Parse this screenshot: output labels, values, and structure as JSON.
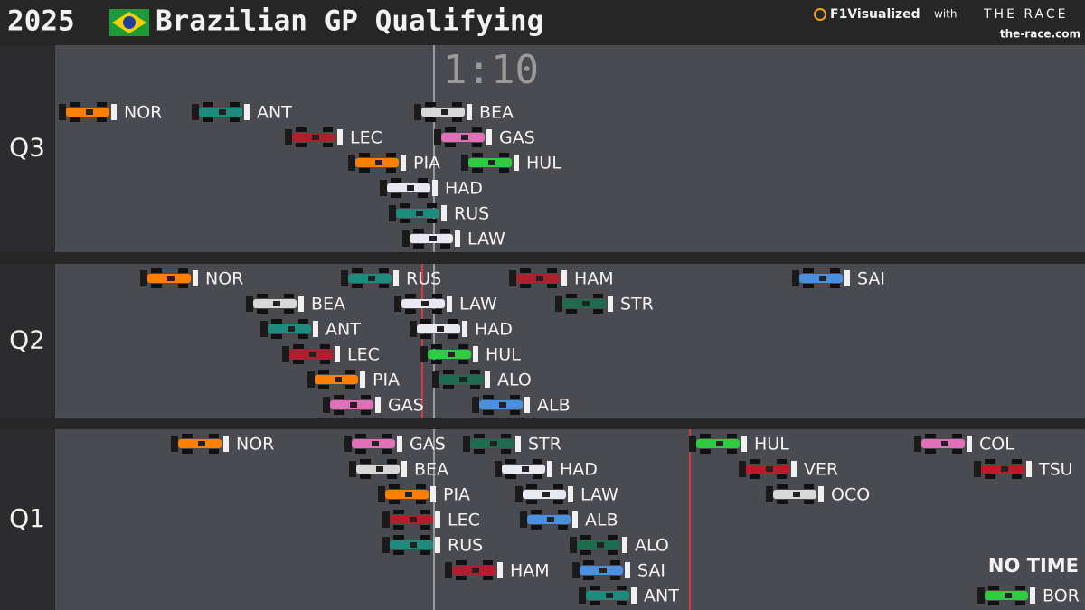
{
  "header": {
    "year": "2025",
    "title": "Brazilian GP Qualifying",
    "brand": "F1Visualized",
    "with": "with",
    "partner": "THE RACE",
    "site": "the-race.com"
  },
  "time_marker": "1:10",
  "no_time_label": "NO TIME",
  "sessions": [
    {
      "label": "Q3",
      "drivers": [
        {
          "code": "NOR",
          "color": "#ff8000"
        },
        {
          "code": "ANT",
          "color": "#1d8c7c"
        },
        {
          "code": "BEA",
          "color": "#d8d8d8"
        },
        {
          "code": "LEC",
          "color": "#b0202c"
        },
        {
          "code": "GAS",
          "color": "#e070b8"
        },
        {
          "code": "PIA",
          "color": "#ff8000"
        },
        {
          "code": "HUL",
          "color": "#2ecc40"
        },
        {
          "code": "HAD",
          "color": "#e8e8f0"
        },
        {
          "code": "RUS",
          "color": "#1d8c7c"
        },
        {
          "code": "LAW",
          "color": "#e8e8f0"
        }
      ]
    },
    {
      "label": "Q2",
      "drivers": [
        {
          "code": "NOR",
          "color": "#ff8000"
        },
        {
          "code": "RUS",
          "color": "#1d8c7c"
        },
        {
          "code": "HAM",
          "color": "#b0202c"
        },
        {
          "code": "SAI",
          "color": "#4a90e2"
        },
        {
          "code": "BEA",
          "color": "#d8d8d8"
        },
        {
          "code": "LAW",
          "color": "#e8e8f0"
        },
        {
          "code": "STR",
          "color": "#1f6b50"
        },
        {
          "code": "ANT",
          "color": "#1d8c7c"
        },
        {
          "code": "HAD",
          "color": "#e8e8f0"
        },
        {
          "code": "LEC",
          "color": "#b0202c"
        },
        {
          "code": "HUL",
          "color": "#2ecc40"
        },
        {
          "code": "PIA",
          "color": "#ff8000"
        },
        {
          "code": "ALO",
          "color": "#1f6b50"
        },
        {
          "code": "GAS",
          "color": "#e070b8"
        },
        {
          "code": "ALB",
          "color": "#4a90e2"
        }
      ]
    },
    {
      "label": "Q1",
      "drivers": [
        {
          "code": "NOR",
          "color": "#ff8000"
        },
        {
          "code": "GAS",
          "color": "#e070b8"
        },
        {
          "code": "STR",
          "color": "#1f6b50"
        },
        {
          "code": "HUL",
          "color": "#2ecc40"
        },
        {
          "code": "COL",
          "color": "#e070b8"
        },
        {
          "code": "BEA",
          "color": "#d8d8d8"
        },
        {
          "code": "HAD",
          "color": "#e8e8f0"
        },
        {
          "code": "VER",
          "color": "#c0182a"
        },
        {
          "code": "TSU",
          "color": "#c0182a"
        },
        {
          "code": "PIA",
          "color": "#ff8000"
        },
        {
          "code": "LAW",
          "color": "#e8e8f0"
        },
        {
          "code": "OCO",
          "color": "#d8d8d8"
        },
        {
          "code": "LEC",
          "color": "#b0202c"
        },
        {
          "code": "ALB",
          "color": "#4a90e2"
        },
        {
          "code": "RUS",
          "color": "#1d8c7c"
        },
        {
          "code": "ALO",
          "color": "#1f6b50"
        },
        {
          "code": "HAM",
          "color": "#b0202c"
        },
        {
          "code": "SAI",
          "color": "#4a90e2"
        },
        {
          "code": "ANT",
          "color": "#1d8c7c"
        },
        {
          "code": "BOR",
          "color": "#2ecc40"
        }
      ]
    }
  ]
}
